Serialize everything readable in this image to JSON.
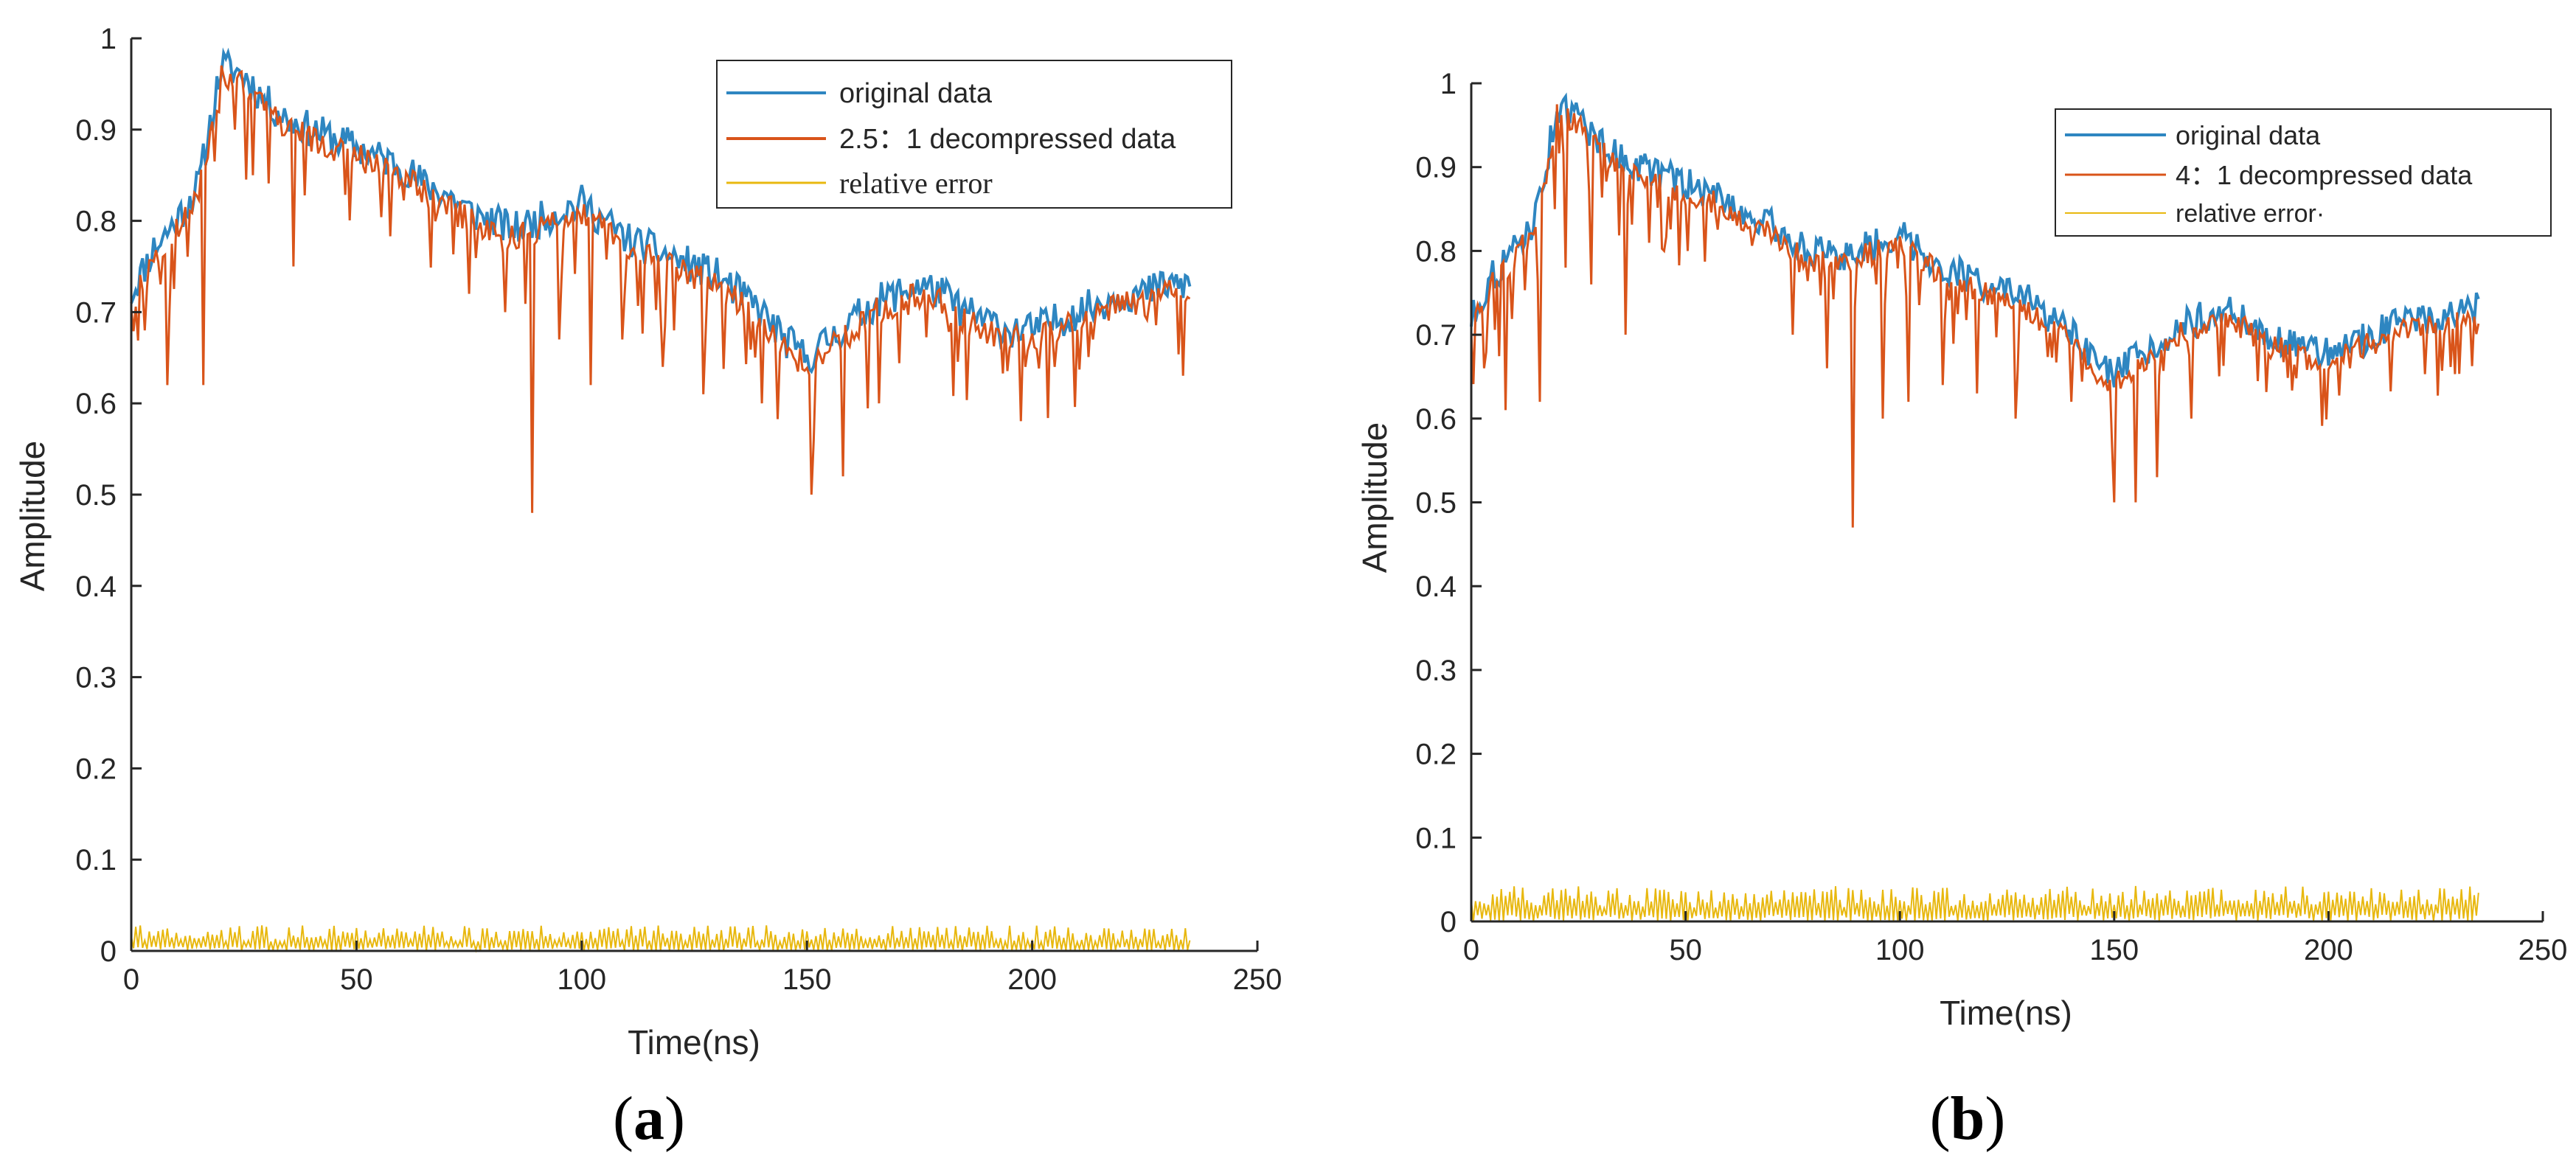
{
  "colors": {
    "original": "#2E86C1",
    "decompressed": "#D9541A",
    "error": "#E8B80F",
    "axis": "#262626"
  },
  "chart_data": [
    {
      "type": "line",
      "panel_label_open": "(",
      "panel_label_letter": "a",
      "panel_label_close": ")",
      "xlabel": "Time(ns)",
      "ylabel": "Amplitude",
      "xlim": [
        0,
        250
      ],
      "ylim": [
        0,
        1
      ],
      "x_ticks": [
        0,
        50,
        100,
        150,
        200,
        250
      ],
      "x_tick_labels": [
        "0",
        "50",
        "100",
        "150",
        "200",
        "250"
      ],
      "y_ticks": [
        0,
        0.1,
        0.2,
        0.3,
        0.4,
        0.5,
        0.6,
        0.7,
        0.8,
        0.9,
        1
      ],
      "y_tick_labels": [
        "0",
        "0.1",
        "0.2",
        "0.3",
        "0.4",
        "0.5",
        "0.6",
        "0.7",
        "0.8",
        "0.9",
        "1"
      ],
      "legend_position": "top-right",
      "grid": false,
      "series": [
        {
          "name": "original data",
          "x": [
            0,
            5,
            10,
            15,
            20,
            25,
            30,
            35,
            40,
            45,
            50,
            55,
            60,
            65,
            70,
            75,
            80,
            85,
            90,
            95,
            100,
            105,
            110,
            115,
            120,
            125,
            130,
            135,
            140,
            145,
            150,
            155,
            160,
            165,
            170,
            175,
            180,
            185,
            190,
            195,
            200,
            205,
            210,
            215,
            220,
            225,
            230,
            235
          ],
          "values": [
            0.72,
            0.77,
            0.8,
            0.84,
            0.97,
            0.96,
            0.93,
            0.91,
            0.9,
            0.89,
            0.88,
            0.87,
            0.86,
            0.84,
            0.83,
            0.81,
            0.8,
            0.79,
            0.8,
            0.81,
            0.82,
            0.8,
            0.78,
            0.77,
            0.76,
            0.75,
            0.74,
            0.72,
            0.7,
            0.67,
            0.65,
            0.67,
            0.69,
            0.71,
            0.72,
            0.73,
            0.72,
            0.7,
            0.69,
            0.68,
            0.68,
            0.69,
            0.7,
            0.71,
            0.72,
            0.72,
            0.73,
            0.73
          ]
        },
        {
          "name": "2.5：1 decompressed data",
          "x": [
            0,
            5,
            10,
            15,
            20,
            25,
            30,
            35,
            40,
            45,
            50,
            55,
            60,
            65,
            70,
            75,
            80,
            85,
            90,
            95,
            100,
            105,
            110,
            115,
            120,
            125,
            130,
            135,
            140,
            145,
            150,
            155,
            160,
            165,
            170,
            175,
            180,
            185,
            190,
            195,
            200,
            205,
            210,
            215,
            220,
            225,
            230,
            235
          ],
          "values": [
            0.71,
            0.76,
            0.79,
            0.83,
            0.96,
            0.95,
            0.92,
            0.9,
            0.89,
            0.88,
            0.87,
            0.86,
            0.85,
            0.83,
            0.82,
            0.8,
            0.79,
            0.78,
            0.79,
            0.8,
            0.81,
            0.79,
            0.77,
            0.76,
            0.75,
            0.74,
            0.73,
            0.71,
            0.69,
            0.66,
            0.64,
            0.66,
            0.68,
            0.7,
            0.71,
            0.72,
            0.71,
            0.69,
            0.68,
            0.67,
            0.67,
            0.68,
            0.69,
            0.7,
            0.71,
            0.71,
            0.72,
            0.72
          ],
          "dips": [
            [
              3,
              0.68
            ],
            [
              8,
              0.62
            ],
            [
              16,
              0.62
            ],
            [
              23,
              0.9
            ],
            [
              27,
              0.85
            ],
            [
              36,
              0.75
            ],
            [
              75,
              0.72
            ],
            [
              83,
              0.7
            ],
            [
              89,
              0.48
            ],
            [
              95,
              0.67
            ],
            [
              102,
              0.62
            ],
            [
              109,
              0.67
            ],
            [
              118,
              0.64
            ],
            [
              127,
              0.61
            ],
            [
              140,
              0.6
            ],
            [
              151,
              0.5
            ],
            [
              158,
              0.52
            ],
            [
              166,
              0.6
            ],
            [
              205,
              0.64
            ]
          ]
        },
        {
          "name": "relative error",
          "x": [
            0,
            235
          ],
          "values": [
            0.01,
            0.01
          ],
          "max": 0.03
        }
      ]
    },
    {
      "type": "line",
      "panel_label_open": "(",
      "panel_label_letter": "b",
      "panel_label_close": ")",
      "xlabel": "Time(ns)",
      "ylabel": "Amplitude",
      "xlim": [
        0,
        250
      ],
      "ylim": [
        0,
        1
      ],
      "x_ticks": [
        0,
        50,
        100,
        150,
        200,
        250
      ],
      "x_tick_labels": [
        "0",
        "50",
        "100",
        "150",
        "200",
        "250"
      ],
      "y_ticks": [
        0,
        0.1,
        0.2,
        0.3,
        0.4,
        0.5,
        0.6,
        0.7,
        0.8,
        0.9,
        1
      ],
      "y_tick_labels": [
        "0",
        "0.1",
        "0.2",
        "0.3",
        "0.4",
        "0.5",
        "0.6",
        "0.7",
        "0.8",
        "0.9",
        "1"
      ],
      "legend_position": "top-right",
      "grid": false,
      "series": [
        {
          "name": "original data",
          "x": [
            0,
            5,
            10,
            15,
            20,
            25,
            30,
            35,
            40,
            45,
            50,
            55,
            60,
            65,
            70,
            75,
            80,
            85,
            90,
            95,
            100,
            105,
            110,
            115,
            120,
            125,
            130,
            135,
            140,
            145,
            150,
            155,
            160,
            165,
            170,
            175,
            180,
            185,
            190,
            195,
            200,
            205,
            210,
            215,
            220,
            225,
            230,
            235
          ],
          "values": [
            0.72,
            0.77,
            0.8,
            0.84,
            0.97,
            0.96,
            0.93,
            0.91,
            0.9,
            0.89,
            0.88,
            0.87,
            0.86,
            0.84,
            0.83,
            0.81,
            0.8,
            0.79,
            0.8,
            0.81,
            0.82,
            0.8,
            0.78,
            0.77,
            0.76,
            0.75,
            0.74,
            0.72,
            0.7,
            0.67,
            0.65,
            0.67,
            0.69,
            0.71,
            0.72,
            0.73,
            0.72,
            0.7,
            0.69,
            0.68,
            0.68,
            0.69,
            0.7,
            0.71,
            0.72,
            0.72,
            0.73,
            0.73
          ]
        },
        {
          "name": "4：1 decompressed data",
          "x": [
            0,
            5,
            10,
            15,
            20,
            25,
            30,
            35,
            40,
            45,
            50,
            55,
            60,
            65,
            70,
            75,
            80,
            85,
            90,
            95,
            100,
            105,
            110,
            115,
            120,
            125,
            130,
            135,
            140,
            145,
            150,
            155,
            160,
            165,
            170,
            175,
            180,
            185,
            190,
            195,
            200,
            205,
            210,
            215,
            220,
            225,
            230,
            235
          ],
          "values": [
            0.71,
            0.76,
            0.79,
            0.83,
            0.96,
            0.95,
            0.92,
            0.9,
            0.89,
            0.88,
            0.87,
            0.86,
            0.85,
            0.83,
            0.82,
            0.8,
            0.79,
            0.78,
            0.79,
            0.8,
            0.81,
            0.79,
            0.77,
            0.76,
            0.75,
            0.74,
            0.73,
            0.71,
            0.69,
            0.66,
            0.64,
            0.66,
            0.68,
            0.7,
            0.71,
            0.72,
            0.71,
            0.69,
            0.68,
            0.67,
            0.67,
            0.68,
            0.69,
            0.7,
            0.71,
            0.71,
            0.72,
            0.72
          ],
          "dips": [
            [
              3,
              0.66
            ],
            [
              8,
              0.61
            ],
            [
              16,
              0.62
            ],
            [
              22,
              0.78
            ],
            [
              28,
              0.76
            ],
            [
              36,
              0.7
            ],
            [
              45,
              0.8
            ],
            [
              75,
              0.7
            ],
            [
              83,
              0.66
            ],
            [
              89,
              0.47
            ],
            [
              96,
              0.6
            ],
            [
              102,
              0.62
            ],
            [
              110,
              0.64
            ],
            [
              118,
              0.63
            ],
            [
              127,
              0.6
            ],
            [
              140,
              0.62
            ],
            [
              150,
              0.5
            ],
            [
              155,
              0.5
            ],
            [
              160,
              0.53
            ],
            [
              168,
              0.6
            ],
            [
              205,
              0.66
            ]
          ]
        },
        {
          "name": "relative error·",
          "x": [
            0,
            235
          ],
          "values": [
            0.015,
            0.02
          ],
          "max": 0.045
        }
      ]
    }
  ]
}
